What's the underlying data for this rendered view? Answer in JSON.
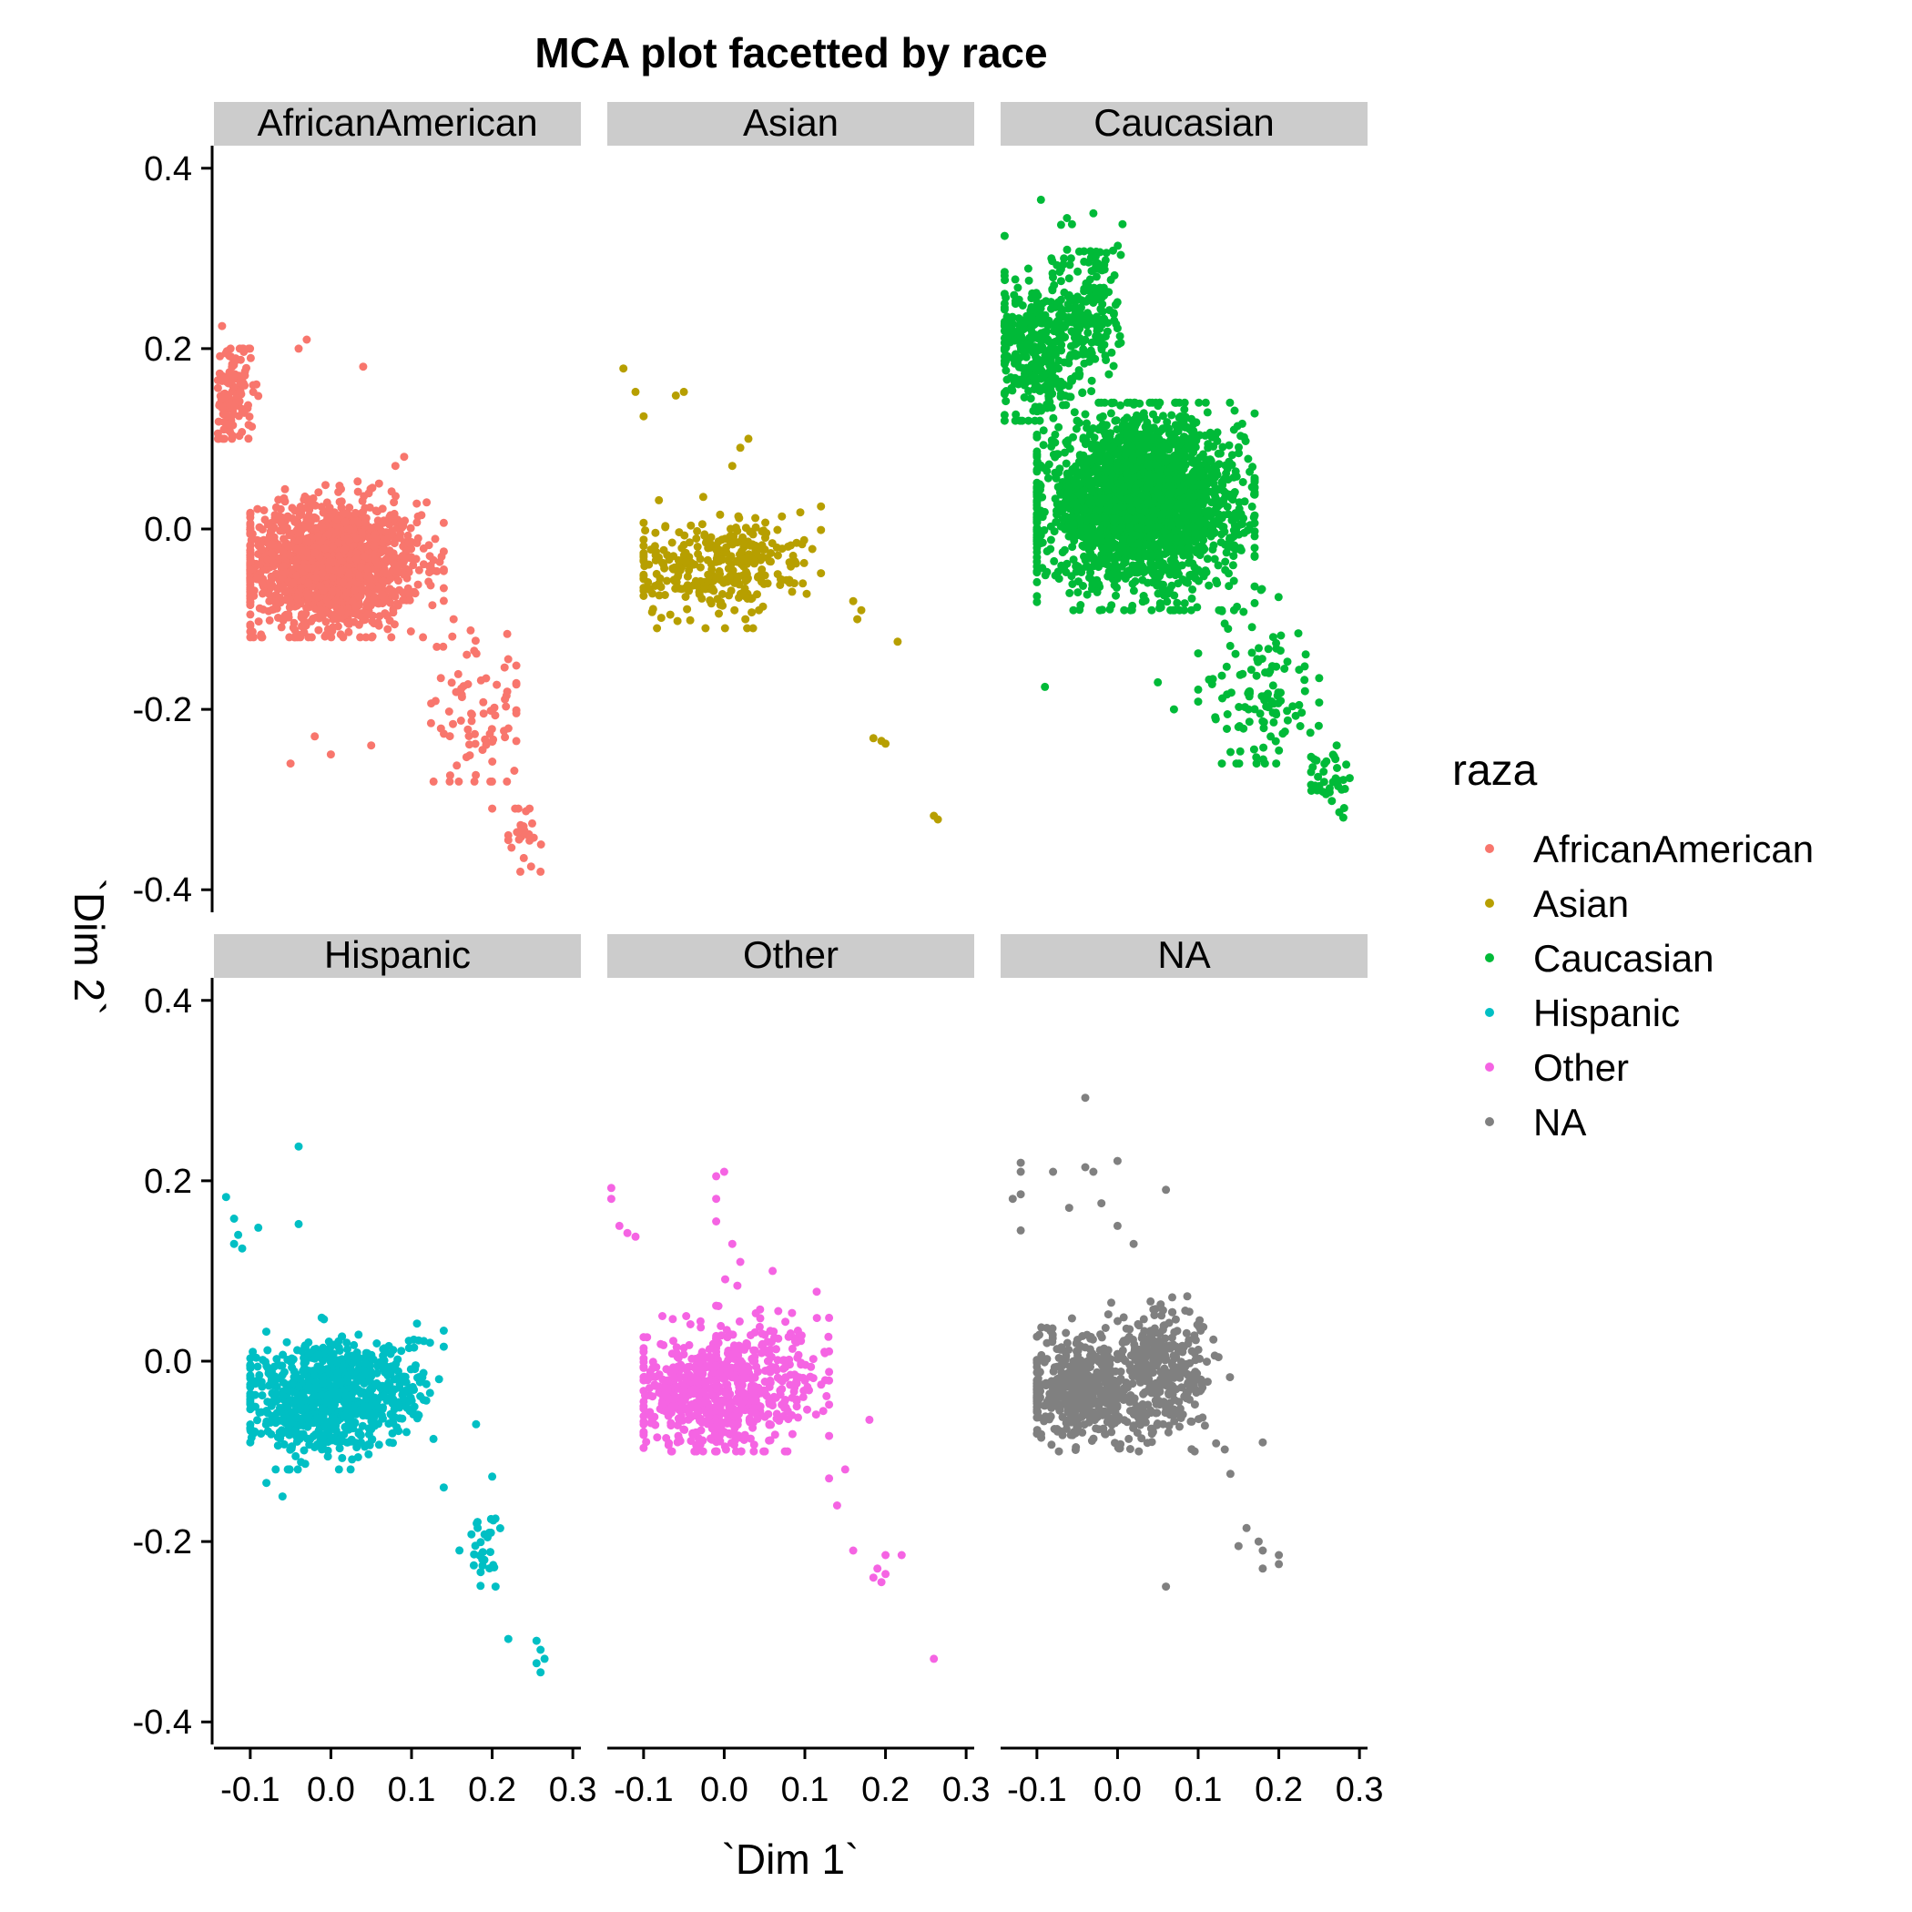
{
  "chart_data": {
    "type": "scatter",
    "title": "MCA plot facetted by race",
    "xlabel": "`Dim 1`",
    "ylabel": "`Dim 2`",
    "xlim": [
      -0.145,
      0.31
    ],
    "ylim": [
      -0.425,
      0.425
    ],
    "x_ticks": [
      -0.1,
      0.0,
      0.1,
      0.2,
      0.3
    ],
    "x_tick_labels": [
      "-0.1",
      "0.0",
      "0.1",
      "0.2",
      "0.3"
    ],
    "y_ticks": [
      -0.4,
      -0.2,
      0.0,
      0.2,
      0.4
    ],
    "y_tick_labels": [
      "-0.4",
      "-0.2",
      "0.0",
      "0.2",
      "0.4"
    ],
    "grid": false,
    "legend": {
      "title": "raza",
      "placement": "right",
      "entries": [
        {
          "label": "AfricanAmerican",
          "color": "#F8766D"
        },
        {
          "label": "Asian",
          "color": "#B79F00"
        },
        {
          "label": "Caucasian",
          "color": "#00BA38"
        },
        {
          "label": "Hispanic",
          "color": "#00BFC4"
        },
        {
          "label": "Other",
          "color": "#F564E3"
        },
        {
          "label": "NA",
          "color": "#808080"
        }
      ]
    },
    "facets": [
      {
        "label": "AfricanAmerican",
        "color": "#F8766D",
        "clusters": [
          {
            "cx": 0.0,
            "cy": -0.04,
            "sx": 0.055,
            "sy": 0.035,
            "n": 1500,
            "box": [
              -0.1,
              0.14,
              -0.12,
              0.09
            ]
          },
          {
            "cx": -0.12,
            "cy": 0.15,
            "sx": 0.012,
            "sy": 0.03,
            "n": 120,
            "box": [
              -0.14,
              -0.09,
              0.1,
              0.2
            ]
          },
          {
            "cx": 0.18,
            "cy": -0.2,
            "sx": 0.03,
            "sy": 0.05,
            "n": 80,
            "box": [
              0.11,
              0.23,
              -0.28,
              -0.1
            ]
          },
          {
            "cx": 0.24,
            "cy": -0.34,
            "sx": 0.01,
            "sy": 0.02,
            "n": 25,
            "box": [
              0.22,
              0.27,
              -0.38,
              -0.31
            ]
          }
        ],
        "points": [
          {
            "x": -0.135,
            "y": 0.225
          },
          {
            "x": -0.03,
            "y": 0.21
          },
          {
            "x": -0.04,
            "y": 0.2
          },
          {
            "x": 0.04,
            "y": 0.18
          },
          {
            "x": -0.02,
            "y": -0.23
          },
          {
            "x": 0.0,
            "y": -0.25
          },
          {
            "x": 0.05,
            "y": -0.24
          },
          {
            "x": -0.05,
            "y": -0.26
          },
          {
            "x": 0.08,
            "y": 0.07
          },
          {
            "x": 0.2,
            "y": -0.31
          },
          {
            "x": 0.26,
            "y": -0.38
          }
        ]
      },
      {
        "label": "Asian",
        "color": "#B79F00",
        "clusters": [
          {
            "cx": -0.03,
            "cy": -0.045,
            "sx": 0.045,
            "sy": 0.028,
            "n": 220,
            "box": [
              -0.1,
              0.11,
              -0.11,
              0.04
            ]
          },
          {
            "cx": 0.04,
            "cy": -0.03,
            "sx": 0.035,
            "sy": 0.025,
            "n": 110,
            "box": [
              -0.02,
              0.12,
              -0.09,
              0.03
            ]
          }
        ],
        "points": [
          {
            "x": -0.125,
            "y": 0.178
          },
          {
            "x": -0.11,
            "y": 0.152
          },
          {
            "x": -0.1,
            "y": 0.125
          },
          {
            "x": -0.06,
            "y": 0.148
          },
          {
            "x": -0.05,
            "y": 0.152
          },
          {
            "x": 0.03,
            "y": 0.1
          },
          {
            "x": 0.02,
            "y": 0.09
          },
          {
            "x": 0.01,
            "y": 0.07
          },
          {
            "x": 0.12,
            "y": 0.025
          },
          {
            "x": 0.16,
            "y": -0.08
          },
          {
            "x": 0.17,
            "y": -0.09
          },
          {
            "x": 0.165,
            "y": -0.1
          },
          {
            "x": 0.215,
            "y": -0.125
          },
          {
            "x": 0.185,
            "y": -0.232
          },
          {
            "x": 0.2,
            "y": -0.238
          },
          {
            "x": 0.195,
            "y": -0.235
          },
          {
            "x": 0.26,
            "y": -0.318
          },
          {
            "x": 0.265,
            "y": -0.322
          }
        ]
      },
      {
        "label": "Caucasian",
        "color": "#00BA38",
        "clusters": [
          {
            "cx": 0.03,
            "cy": 0.03,
            "sx": 0.06,
            "sy": 0.045,
            "n": 2400,
            "box": [
              -0.1,
              0.17,
              -0.09,
              0.14
            ]
          },
          {
            "cx": -0.1,
            "cy": 0.2,
            "sx": 0.025,
            "sy": 0.04,
            "n": 350,
            "box": [
              -0.14,
              -0.04,
              0.12,
              0.3
            ]
          },
          {
            "cx": -0.03,
            "cy": 0.24,
            "sx": 0.018,
            "sy": 0.045,
            "n": 180,
            "box": [
              -0.07,
              0.02,
              0.14,
              0.35
            ]
          },
          {
            "cx": 0.18,
            "cy": -0.18,
            "sx": 0.035,
            "sy": 0.05,
            "n": 120,
            "box": [
              0.1,
              0.25,
              -0.26,
              -0.05
            ]
          },
          {
            "cx": 0.26,
            "cy": -0.28,
            "sx": 0.012,
            "sy": 0.02,
            "n": 35,
            "box": [
              0.24,
              0.29,
              -0.32,
              -0.24
            ]
          }
        ],
        "points": [
          {
            "x": -0.14,
            "y": 0.325
          },
          {
            "x": -0.095,
            "y": 0.365
          },
          {
            "x": -0.03,
            "y": 0.35
          },
          {
            "x": -0.14,
            "y": 0.285
          },
          {
            "x": -0.09,
            "y": -0.175
          },
          {
            "x": 0.05,
            "y": -0.17
          },
          {
            "x": 0.07,
            "y": -0.2
          },
          {
            "x": 0.28,
            "y": -0.32
          }
        ]
      },
      {
        "label": "Hispanic",
        "color": "#00BFC4",
        "clusters": [
          {
            "cx": -0.02,
            "cy": -0.04,
            "sx": 0.045,
            "sy": 0.03,
            "n": 650,
            "box": [
              -0.1,
              0.13,
              -0.12,
              0.07
            ]
          },
          {
            "cx": 0.05,
            "cy": -0.03,
            "sx": 0.04,
            "sy": 0.03,
            "n": 250,
            "box": [
              -0.01,
              0.14,
              -0.09,
              0.08
            ]
          },
          {
            "cx": 0.19,
            "cy": -0.21,
            "sx": 0.015,
            "sy": 0.025,
            "n": 30,
            "box": [
              0.15,
              0.21,
              -0.25,
              -0.17
            ]
          }
        ],
        "points": [
          {
            "x": -0.04,
            "y": 0.238
          },
          {
            "x": -0.13,
            "y": 0.182
          },
          {
            "x": -0.12,
            "y": 0.158
          },
          {
            "x": -0.115,
            "y": 0.14
          },
          {
            "x": -0.12,
            "y": 0.13
          },
          {
            "x": -0.11,
            "y": 0.125
          },
          {
            "x": -0.09,
            "y": 0.148
          },
          {
            "x": -0.04,
            "y": 0.152
          },
          {
            "x": 0.2,
            "y": -0.128
          },
          {
            "x": 0.14,
            "y": -0.14
          },
          {
            "x": 0.18,
            "y": -0.07
          },
          {
            "x": -0.08,
            "y": -0.135
          },
          {
            "x": -0.06,
            "y": -0.15
          },
          {
            "x": 0.22,
            "y": -0.308
          },
          {
            "x": 0.255,
            "y": -0.31
          },
          {
            "x": 0.26,
            "y": -0.32
          },
          {
            "x": 0.265,
            "y": -0.33
          },
          {
            "x": 0.26,
            "y": -0.345
          },
          {
            "x": 0.255,
            "y": -0.335
          }
        ]
      },
      {
        "label": "Other",
        "color": "#F564E3",
        "clusters": [
          {
            "cx": -0.03,
            "cy": -0.04,
            "sx": 0.04,
            "sy": 0.03,
            "n": 480,
            "box": [
              -0.1,
              0.09,
              -0.1,
              0.05
            ]
          },
          {
            "cx": 0.05,
            "cy": -0.02,
            "sx": 0.04,
            "sy": 0.035,
            "n": 260,
            "box": [
              -0.01,
              0.13,
              -0.1,
              0.1
            ]
          }
        ],
        "points": [
          {
            "x": -0.14,
            "y": 0.192
          },
          {
            "x": -0.14,
            "y": 0.18
          },
          {
            "x": -0.13,
            "y": 0.15
          },
          {
            "x": -0.11,
            "y": 0.138
          },
          {
            "x": -0.12,
            "y": 0.142
          },
          {
            "x": -0.01,
            "y": 0.205
          },
          {
            "x": 0.0,
            "y": 0.21
          },
          {
            "x": -0.01,
            "y": 0.18
          },
          {
            "x": -0.01,
            "y": 0.155
          },
          {
            "x": 0.01,
            "y": 0.13
          },
          {
            "x": 0.02,
            "y": 0.11
          },
          {
            "x": 0.06,
            "y": 0.1
          },
          {
            "x": 0.18,
            "y": -0.065
          },
          {
            "x": 0.15,
            "y": -0.12
          },
          {
            "x": 0.13,
            "y": -0.13
          },
          {
            "x": 0.14,
            "y": -0.16
          },
          {
            "x": 0.16,
            "y": -0.21
          },
          {
            "x": 0.19,
            "y": -0.23
          },
          {
            "x": 0.2,
            "y": -0.215
          },
          {
            "x": 0.22,
            "y": -0.215
          },
          {
            "x": 0.185,
            "y": -0.24
          },
          {
            "x": 0.195,
            "y": -0.245
          },
          {
            "x": 0.2,
            "y": -0.236
          },
          {
            "x": 0.26,
            "y": -0.33
          }
        ]
      },
      {
        "label": "NA",
        "color": "#808080",
        "clusters": [
          {
            "cx": -0.04,
            "cy": -0.03,
            "sx": 0.035,
            "sy": 0.03,
            "n": 480,
            "box": [
              -0.1,
              0.06,
              -0.1,
              0.07
            ]
          },
          {
            "cx": 0.06,
            "cy": -0.01,
            "sx": 0.03,
            "sy": 0.035,
            "n": 320,
            "box": [
              0.0,
              0.15,
              -0.1,
              0.08
            ]
          }
        ],
        "points": [
          {
            "x": -0.04,
            "y": 0.292
          },
          {
            "x": -0.12,
            "y": 0.22
          },
          {
            "x": -0.12,
            "y": 0.21
          },
          {
            "x": -0.13,
            "y": 0.18
          },
          {
            "x": -0.12,
            "y": 0.185
          },
          {
            "x": -0.12,
            "y": 0.145
          },
          {
            "x": -0.08,
            "y": 0.21
          },
          {
            "x": -0.04,
            "y": 0.215
          },
          {
            "x": 0.0,
            "y": 0.222
          },
          {
            "x": 0.06,
            "y": 0.19
          },
          {
            "x": -0.03,
            "y": 0.21
          },
          {
            "x": -0.06,
            "y": 0.17
          },
          {
            "x": -0.02,
            "y": 0.175
          },
          {
            "x": 0.0,
            "y": 0.15
          },
          {
            "x": 0.02,
            "y": 0.13
          },
          {
            "x": 0.14,
            "y": -0.125
          },
          {
            "x": 0.18,
            "y": -0.09
          },
          {
            "x": 0.15,
            "y": -0.205
          },
          {
            "x": 0.16,
            "y": -0.185
          },
          {
            "x": 0.175,
            "y": -0.2
          },
          {
            "x": 0.18,
            "y": -0.21
          },
          {
            "x": 0.2,
            "y": -0.215
          },
          {
            "x": 0.2,
            "y": -0.225
          },
          {
            "x": 0.18,
            "y": -0.23
          },
          {
            "x": 0.06,
            "y": -0.25
          }
        ]
      }
    ]
  }
}
